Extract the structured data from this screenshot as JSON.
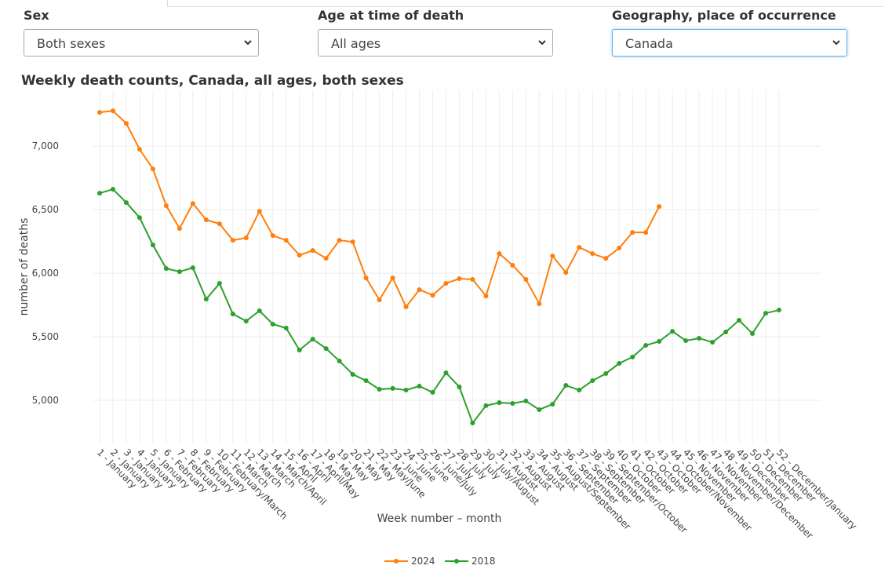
{
  "filters": [
    {
      "label": "Sex",
      "value": "Both sexes"
    },
    {
      "label": "Age at time of death",
      "value": "All ages"
    },
    {
      "label": "Geography, place of occurrence",
      "value": "Canada"
    }
  ],
  "chart_data": {
    "type": "line",
    "title": "Weekly death counts, Canada, all ages, both sexes",
    "x_label": "Week number – month",
    "y_label": "number of deaths",
    "categories": [
      "1 - January",
      "2 - January",
      "3 - January",
      "4 - January",
      "5 - January",
      "6 - February",
      "7 - February",
      "8 - February",
      "9 - February",
      "10 - February/March",
      "11 - March",
      "12 - March",
      "13 - March",
      "14 - March/April",
      "15 - April",
      "16 - April",
      "17 - April/May",
      "18 - May",
      "19 - May",
      "20 - May",
      "21 - May",
      "22 - May/June",
      "23 - June",
      "24 - June",
      "25 - June",
      "26 - June/July",
      "27 - July",
      "28 - July",
      "29 - July",
      "30 - July/August",
      "31 - August",
      "32 - August",
      "33 - August",
      "34 - August",
      "35 - August/September",
      "36 - September",
      "37 - September",
      "38 - September",
      "39 - September/October",
      "40 - October",
      "41 - October",
      "42 - October",
      "43 - October",
      "44 - October/November",
      "45 - November",
      "46 - November",
      "47 - November",
      "48 - November/December",
      "49 - December",
      "50 - December",
      "51 - December",
      "52 - December/January"
    ],
    "series": [
      {
        "name": "2024",
        "color": "#ff7f0e",
        "values": [
          7266,
          7278,
          7179,
          6975,
          6821,
          6531,
          6352,
          6549,
          6420,
          6389,
          6259,
          6278,
          6488,
          6296,
          6259,
          6142,
          6179,
          6117,
          6259,
          6247,
          5963,
          5790,
          5963,
          5735,
          5870,
          5827,
          5920,
          5957,
          5951,
          5821,
          6154,
          6062,
          5951,
          5759,
          6136,
          6006,
          6204,
          6154,
          6117,
          6198,
          6321,
          6321,
          6525,
          null,
          null,
          null,
          null,
          null,
          null,
          null,
          null,
          null
        ]
      },
      {
        "name": "2018",
        "color": "#2ca02c",
        "values": [
          6630,
          6661,
          6556,
          6438,
          6222,
          6037,
          6012,
          6043,
          5796,
          5920,
          5679,
          5623,
          5704,
          5599,
          5568,
          5395,
          5481,
          5407,
          5309,
          5204,
          5154,
          5086,
          5093,
          5080,
          5111,
          5062,
          5216,
          5105,
          4821,
          4957,
          4981,
          4975,
          4994,
          4926,
          4969,
          5117,
          5080,
          5154,
          5210,
          5290,
          5340,
          5432,
          5463,
          5543,
          5469,
          5488,
          5457,
          5537,
          5630,
          5525,
          5685,
          5710
        ]
      }
    ],
    "ylim": [
      4660,
      7440
    ],
    "yticks": [
      {
        "value": 5000,
        "label": "5,000"
      },
      {
        "value": 5500,
        "label": "5,500"
      },
      {
        "value": 6000,
        "label": "6,000"
      },
      {
        "value": 6500,
        "label": "6,500"
      },
      {
        "value": 7000,
        "label": "7,000"
      }
    ],
    "grid": true,
    "legend": "bottom"
  }
}
